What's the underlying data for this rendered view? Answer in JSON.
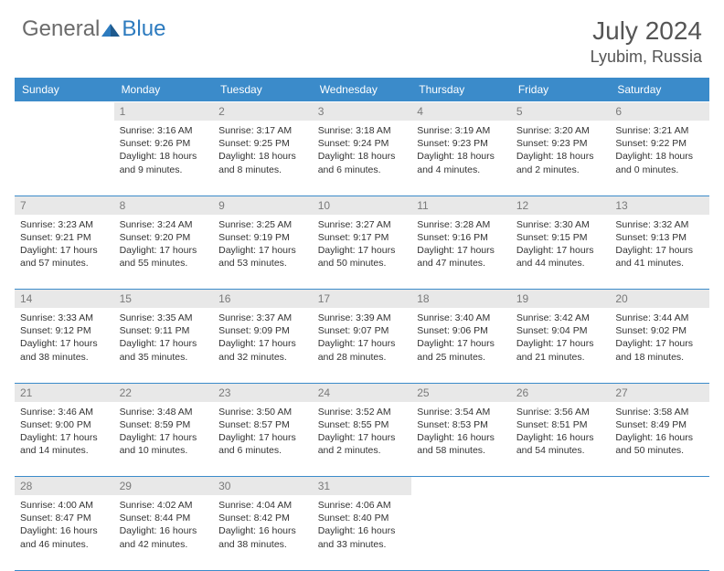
{
  "logo": {
    "general": "General",
    "blue": "Blue"
  },
  "header": {
    "title": "July 2024",
    "location": "Lyubim, Russia"
  },
  "colors": {
    "header_bg": "#3b8bca",
    "header_text": "#ffffff",
    "daynum_bg": "#e8e8e8",
    "daynum_text": "#7a7a7a",
    "cell_text": "#333333",
    "rule": "#3b8bca",
    "logo_grey": "#6b6b6b",
    "logo_blue": "#2d7bbf"
  },
  "dayNames": [
    "Sunday",
    "Monday",
    "Tuesday",
    "Wednesday",
    "Thursday",
    "Friday",
    "Saturday"
  ],
  "weeks": [
    [
      null,
      {
        "n": "1",
        "sr": "3:16 AM",
        "ss": "9:26 PM",
        "dl": "18 hours and 9 minutes."
      },
      {
        "n": "2",
        "sr": "3:17 AM",
        "ss": "9:25 PM",
        "dl": "18 hours and 8 minutes."
      },
      {
        "n": "3",
        "sr": "3:18 AM",
        "ss": "9:24 PM",
        "dl": "18 hours and 6 minutes."
      },
      {
        "n": "4",
        "sr": "3:19 AM",
        "ss": "9:23 PM",
        "dl": "18 hours and 4 minutes."
      },
      {
        "n": "5",
        "sr": "3:20 AM",
        "ss": "9:23 PM",
        "dl": "18 hours and 2 minutes."
      },
      {
        "n": "6",
        "sr": "3:21 AM",
        "ss": "9:22 PM",
        "dl": "18 hours and 0 minutes."
      }
    ],
    [
      {
        "n": "7",
        "sr": "3:23 AM",
        "ss": "9:21 PM",
        "dl": "17 hours and 57 minutes."
      },
      {
        "n": "8",
        "sr": "3:24 AM",
        "ss": "9:20 PM",
        "dl": "17 hours and 55 minutes."
      },
      {
        "n": "9",
        "sr": "3:25 AM",
        "ss": "9:19 PM",
        "dl": "17 hours and 53 minutes."
      },
      {
        "n": "10",
        "sr": "3:27 AM",
        "ss": "9:17 PM",
        "dl": "17 hours and 50 minutes."
      },
      {
        "n": "11",
        "sr": "3:28 AM",
        "ss": "9:16 PM",
        "dl": "17 hours and 47 minutes."
      },
      {
        "n": "12",
        "sr": "3:30 AM",
        "ss": "9:15 PM",
        "dl": "17 hours and 44 minutes."
      },
      {
        "n": "13",
        "sr": "3:32 AM",
        "ss": "9:13 PM",
        "dl": "17 hours and 41 minutes."
      }
    ],
    [
      {
        "n": "14",
        "sr": "3:33 AM",
        "ss": "9:12 PM",
        "dl": "17 hours and 38 minutes."
      },
      {
        "n": "15",
        "sr": "3:35 AM",
        "ss": "9:11 PM",
        "dl": "17 hours and 35 minutes."
      },
      {
        "n": "16",
        "sr": "3:37 AM",
        "ss": "9:09 PM",
        "dl": "17 hours and 32 minutes."
      },
      {
        "n": "17",
        "sr": "3:39 AM",
        "ss": "9:07 PM",
        "dl": "17 hours and 28 minutes."
      },
      {
        "n": "18",
        "sr": "3:40 AM",
        "ss": "9:06 PM",
        "dl": "17 hours and 25 minutes."
      },
      {
        "n": "19",
        "sr": "3:42 AM",
        "ss": "9:04 PM",
        "dl": "17 hours and 21 minutes."
      },
      {
        "n": "20",
        "sr": "3:44 AM",
        "ss": "9:02 PM",
        "dl": "17 hours and 18 minutes."
      }
    ],
    [
      {
        "n": "21",
        "sr": "3:46 AM",
        "ss": "9:00 PM",
        "dl": "17 hours and 14 minutes."
      },
      {
        "n": "22",
        "sr": "3:48 AM",
        "ss": "8:59 PM",
        "dl": "17 hours and 10 minutes."
      },
      {
        "n": "23",
        "sr": "3:50 AM",
        "ss": "8:57 PM",
        "dl": "17 hours and 6 minutes."
      },
      {
        "n": "24",
        "sr": "3:52 AM",
        "ss": "8:55 PM",
        "dl": "17 hours and 2 minutes."
      },
      {
        "n": "25",
        "sr": "3:54 AM",
        "ss": "8:53 PM",
        "dl": "16 hours and 58 minutes."
      },
      {
        "n": "26",
        "sr": "3:56 AM",
        "ss": "8:51 PM",
        "dl": "16 hours and 54 minutes."
      },
      {
        "n": "27",
        "sr": "3:58 AM",
        "ss": "8:49 PM",
        "dl": "16 hours and 50 minutes."
      }
    ],
    [
      {
        "n": "28",
        "sr": "4:00 AM",
        "ss": "8:47 PM",
        "dl": "16 hours and 46 minutes."
      },
      {
        "n": "29",
        "sr": "4:02 AM",
        "ss": "8:44 PM",
        "dl": "16 hours and 42 minutes."
      },
      {
        "n": "30",
        "sr": "4:04 AM",
        "ss": "8:42 PM",
        "dl": "16 hours and 38 minutes."
      },
      {
        "n": "31",
        "sr": "4:06 AM",
        "ss": "8:40 PM",
        "dl": "16 hours and 33 minutes."
      },
      null,
      null,
      null
    ]
  ],
  "labels": {
    "sunrise": "Sunrise:",
    "sunset": "Sunset:",
    "daylight": "Daylight:"
  }
}
